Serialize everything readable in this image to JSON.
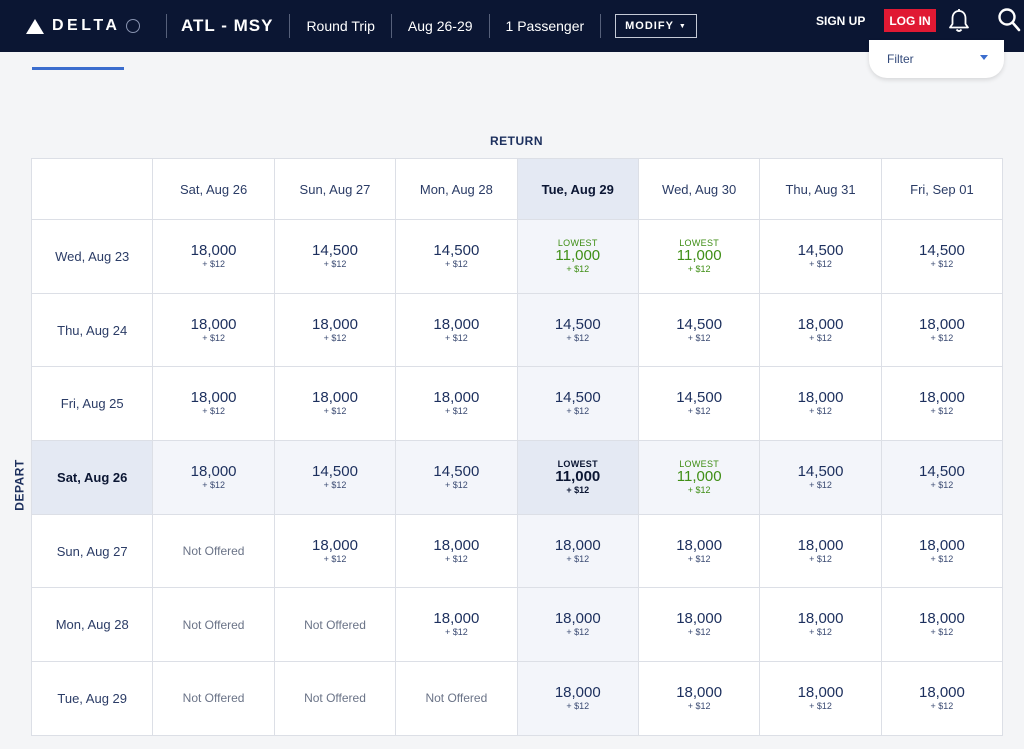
{
  "header": {
    "brand": "DELTA",
    "route": "ATL - MSY",
    "trip_type": "Round Trip",
    "dates": "Aug 26-29",
    "passengers": "1 Passenger",
    "modify_label": "MODIFY",
    "signup_label": "SIGN UP",
    "login_label": "LOG IN"
  },
  "filter": {
    "label": "Filter"
  },
  "grid": {
    "return_label": "RETURN",
    "depart_label": "DEPART",
    "columns": [
      "Sat, Aug 26",
      "Sun, Aug 27",
      "Mon, Aug 28",
      "Tue, Aug 29",
      "Wed, Aug 30",
      "Thu, Aug 31",
      "Fri, Sep 01"
    ],
    "selected_column": 3,
    "selected_row": 3,
    "rows": [
      {
        "label": "Wed, Aug 23",
        "cells": [
          {
            "miles": "18,000",
            "tax": "+ $12"
          },
          {
            "miles": "14,500",
            "tax": "+ $12"
          },
          {
            "miles": "14,500",
            "tax": "+ $12"
          },
          {
            "lowest": "LOWEST",
            "miles": "11,000",
            "tax": "+ $12"
          },
          {
            "lowest": "LOWEST",
            "miles": "11,000",
            "tax": "+ $12"
          },
          {
            "miles": "14,500",
            "tax": "+ $12"
          },
          {
            "miles": "14,500",
            "tax": "+ $12"
          }
        ]
      },
      {
        "label": "Thu, Aug 24",
        "cells": [
          {
            "miles": "18,000",
            "tax": "+ $12"
          },
          {
            "miles": "18,000",
            "tax": "+ $12"
          },
          {
            "miles": "18,000",
            "tax": "+ $12"
          },
          {
            "miles": "14,500",
            "tax": "+ $12"
          },
          {
            "miles": "14,500",
            "tax": "+ $12"
          },
          {
            "miles": "18,000",
            "tax": "+ $12"
          },
          {
            "miles": "18,000",
            "tax": "+ $12"
          }
        ]
      },
      {
        "label": "Fri, Aug 25",
        "cells": [
          {
            "miles": "18,000",
            "tax": "+ $12"
          },
          {
            "miles": "18,000",
            "tax": "+ $12"
          },
          {
            "miles": "18,000",
            "tax": "+ $12"
          },
          {
            "miles": "14,500",
            "tax": "+ $12"
          },
          {
            "miles": "14,500",
            "tax": "+ $12"
          },
          {
            "miles": "18,000",
            "tax": "+ $12"
          },
          {
            "miles": "18,000",
            "tax": "+ $12"
          }
        ]
      },
      {
        "label": "Sat, Aug 26",
        "cells": [
          {
            "miles": "18,000",
            "tax": "+ $12"
          },
          {
            "miles": "14,500",
            "tax": "+ $12"
          },
          {
            "miles": "14,500",
            "tax": "+ $12"
          },
          {
            "lowest": "LOWEST",
            "miles": "11,000",
            "tax": "+ $12"
          },
          {
            "lowest": "LOWEST",
            "miles": "11,000",
            "tax": "+ $12"
          },
          {
            "miles": "14,500",
            "tax": "+ $12"
          },
          {
            "miles": "14,500",
            "tax": "+ $12"
          }
        ]
      },
      {
        "label": "Sun, Aug 27",
        "cells": [
          {
            "na": "Not Offered"
          },
          {
            "miles": "18,000",
            "tax": "+ $12"
          },
          {
            "miles": "18,000",
            "tax": "+ $12"
          },
          {
            "miles": "18,000",
            "tax": "+ $12"
          },
          {
            "miles": "18,000",
            "tax": "+ $12"
          },
          {
            "miles": "18,000",
            "tax": "+ $12"
          },
          {
            "miles": "18,000",
            "tax": "+ $12"
          }
        ]
      },
      {
        "label": "Mon, Aug 28",
        "cells": [
          {
            "na": "Not Offered"
          },
          {
            "na": "Not Offered"
          },
          {
            "miles": "18,000",
            "tax": "+ $12"
          },
          {
            "miles": "18,000",
            "tax": "+ $12"
          },
          {
            "miles": "18,000",
            "tax": "+ $12"
          },
          {
            "miles": "18,000",
            "tax": "+ $12"
          },
          {
            "miles": "18,000",
            "tax": "+ $12"
          }
        ]
      },
      {
        "label": "Tue, Aug 29",
        "cells": [
          {
            "na": "Not Offered"
          },
          {
            "na": "Not Offered"
          },
          {
            "na": "Not Offered"
          },
          {
            "miles": "18,000",
            "tax": "+ $12"
          },
          {
            "miles": "18,000",
            "tax": "+ $12"
          },
          {
            "miles": "18,000",
            "tax": "+ $12"
          },
          {
            "miles": "18,000",
            "tax": "+ $12"
          }
        ]
      }
    ]
  }
}
